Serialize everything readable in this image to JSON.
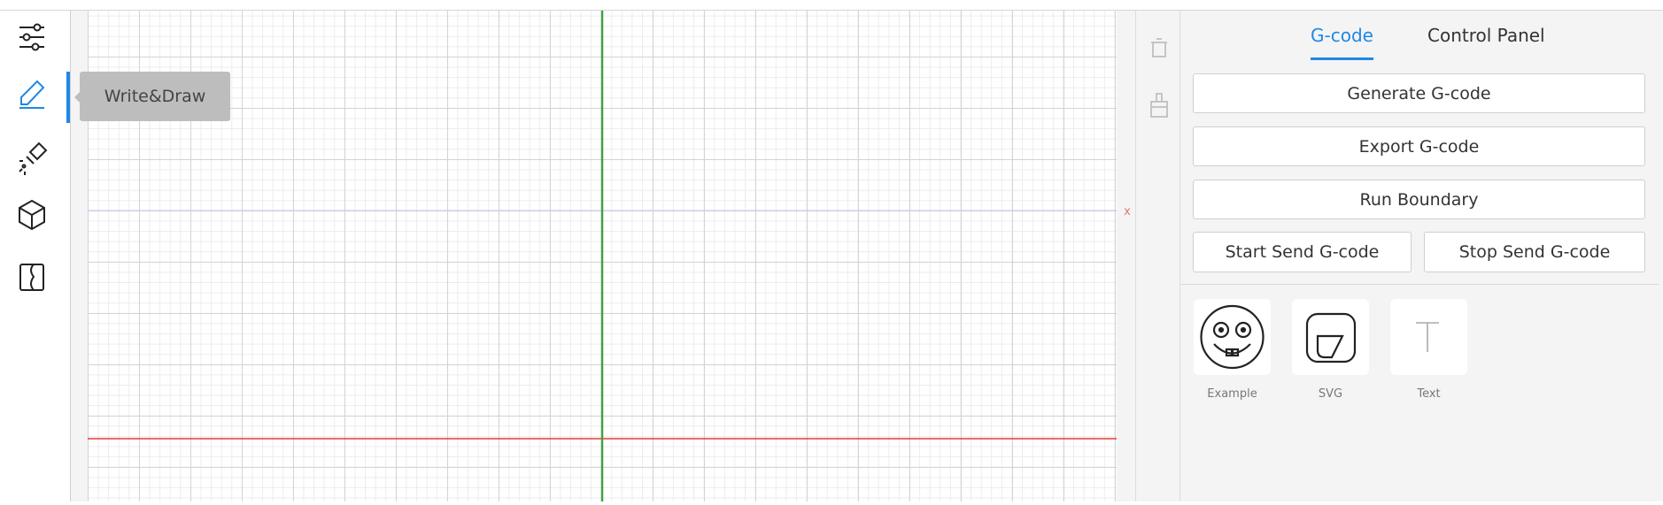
{
  "sidebar": {
    "tooltip": "Write&Draw"
  },
  "canvas": {
    "axis_label": "x"
  },
  "panel": {
    "tabs": [
      "G-code",
      "Control Panel"
    ],
    "active_tab": 0,
    "buttons": [
      "Generate G-code",
      "Export G-code",
      "Run Boundary"
    ],
    "send_buttons": [
      "Start Send G-code",
      "Stop Send G-code"
    ],
    "cards": [
      "Example",
      "SVG",
      "Text"
    ]
  }
}
